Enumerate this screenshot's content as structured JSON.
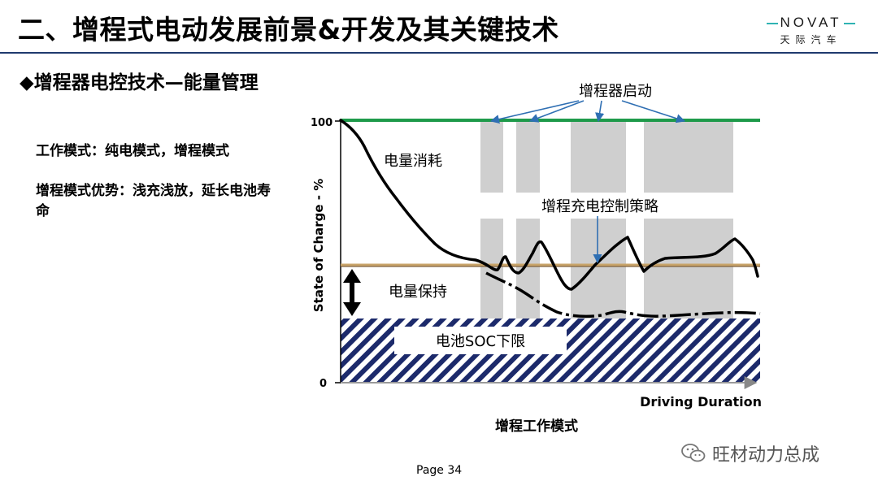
{
  "header": {
    "title": "二、增程式电动发展前景&开发及其关键技术",
    "logo_text": "NOVAT",
    "logo_sub": "天际汽车"
  },
  "section": {
    "subtitle": "◆增程器电控技术—能量管理"
  },
  "description": {
    "line1": "工作模式：纯电模式，增程模式",
    "line2": "增程模式优势：浅充浅放，延长电池寿命"
  },
  "diagram": {
    "y_axis_label": "State of Charge - %",
    "y_tick_top": "100",
    "y_tick_bottom": "0",
    "x_axis_label": "Driving Duration",
    "caption": "增程工作模式",
    "annotations": {
      "range_extender_start": "增程器启动",
      "depletion": "电量消耗",
      "charge_strategy": "增程充电控制策略",
      "sustain": "电量保持",
      "soc_lower_limit": "电池SOC下限"
    },
    "colors": {
      "top_line": "#1e9a4a",
      "sustain_line": "#c8a46a",
      "hatch": "#1c2a6b",
      "shade": "#cfcfcf",
      "arrow": "#2f6fb3"
    }
  },
  "footer": {
    "page": "Page  34",
    "watermark": "旺材动力总成"
  }
}
